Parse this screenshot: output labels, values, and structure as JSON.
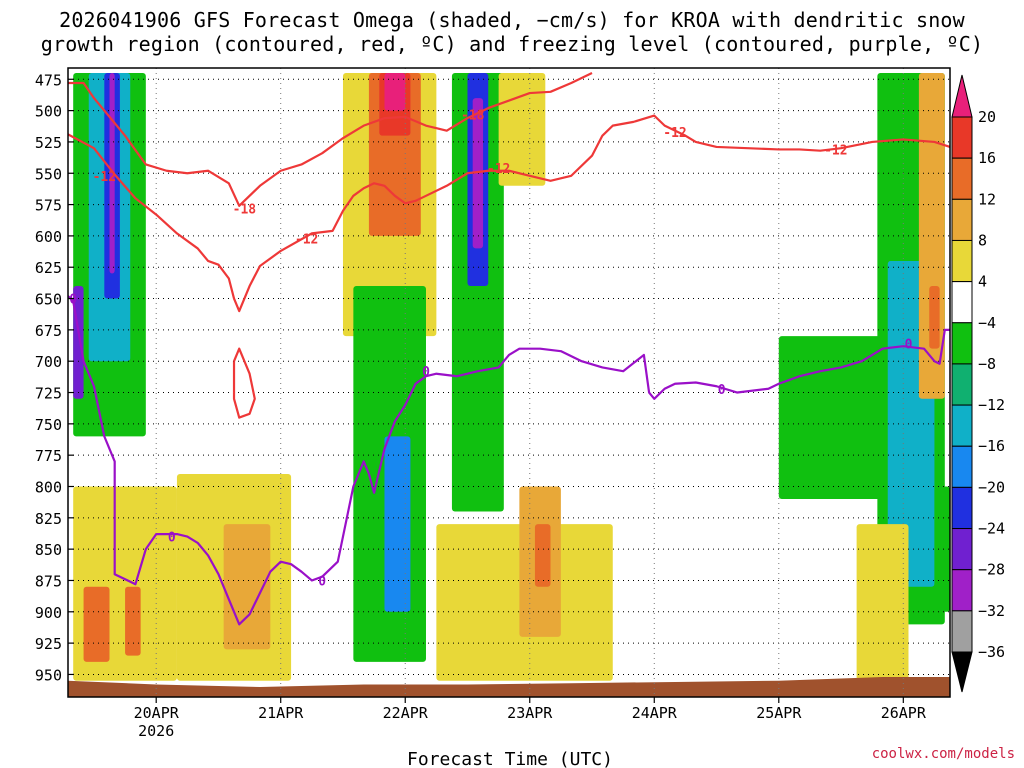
{
  "chart_data": {
    "type": "heatmap",
    "title_line1": "2026041906 GFS Forecast Omega (shaded, −cm/s) for KROA with dendritic snow",
    "title_line2": "growth region (contoured, red, ºC) and freezing level (contoured, purple, ºC)",
    "xlabel": "Forecast Time (UTC)",
    "ylabel": "",
    "credit": "coolwx.com/models",
    "x_range_hours": [
      -17,
      153
    ],
    "x_ticks": [
      {
        "hour": 0,
        "label": "20APR",
        "sublabel": "2026"
      },
      {
        "hour": 24,
        "label": "21APR"
      },
      {
        "hour": 48,
        "label": "22APR"
      },
      {
        "hour": 72,
        "label": "23APR"
      },
      {
        "hour": 96,
        "label": "24APR"
      },
      {
        "hour": 120,
        "label": "25APR"
      },
      {
        "hour": 144,
        "label": "26APR"
      }
    ],
    "y_ticks": [
      {
        "value": 475,
        "label": "475"
      },
      {
        "value": 500,
        "label": "500"
      },
      {
        "value": 525,
        "label": "525"
      },
      {
        "value": 550,
        "label": "550"
      },
      {
        "value": 575,
        "label": "575"
      },
      {
        "value": 600,
        "label": "600"
      },
      {
        "value": 625,
        "label": "625"
      },
      {
        "value": 650,
        "label": "650"
      },
      {
        "value": 675,
        "label": "675"
      },
      {
        "value": 700,
        "label": "700"
      },
      {
        "value": 725,
        "label": "725"
      },
      {
        "value": 750,
        "label": "750"
      },
      {
        "value": 775,
        "label": "775"
      },
      {
        "value": 800,
        "label": "800"
      },
      {
        "value": 825,
        "label": "825"
      },
      {
        "value": 850,
        "label": "850"
      },
      {
        "value": 875,
        "label": "875"
      },
      {
        "value": 900,
        "label": "900"
      },
      {
        "value": 925,
        "label": "925"
      },
      {
        "value": 950,
        "label": "950"
      }
    ],
    "y_range_hpa": [
      466,
      968
    ],
    "colorbar": {
      "levels": [
        {
          "label": "20",
          "color": "#e8207a"
        },
        {
          "label": "16",
          "color": "#e83828"
        },
        {
          "label": "12",
          "color": "#e86c28"
        },
        {
          "label": "8",
          "color": "#e8a838"
        },
        {
          "label": "4",
          "color": "#e8d838"
        },
        {
          "label": "−4",
          "color": "#ffffff"
        },
        {
          "label": "−8",
          "color": "#10c010"
        },
        {
          "label": "−12",
          "color": "#10b070"
        },
        {
          "label": "−16",
          "color": "#10b0c8"
        },
        {
          "label": "−20",
          "color": "#1888f0"
        },
        {
          "label": "−24",
          "color": "#2030e0"
        },
        {
          "label": "−28",
          "color": "#7020d0"
        },
        {
          "label": "−32",
          "color": "#a020c8"
        },
        {
          "label": "−36",
          "color": "#a0a0a0"
        }
      ],
      "top_arrow_color": "#e8207a",
      "bottom_arrow_color": "#000000"
    },
    "shaded_regions": [
      {
        "h0": -16,
        "h1": -2,
        "p0": 470,
        "p1": 760,
        "color": "#10c010"
      },
      {
        "h0": -13,
        "h1": -5,
        "p0": 470,
        "p1": 700,
        "color": "#10b0c8"
      },
      {
        "h0": -10,
        "h1": -7,
        "p0": 470,
        "p1": 650,
        "color": "#2030e0"
      },
      {
        "h0": -9,
        "h1": -8,
        "p0": 470,
        "p1": 630,
        "color": "#a020c8"
      },
      {
        "h0": -16,
        "h1": -14,
        "p0": 640,
        "p1": 730,
        "color": "#7020d0"
      },
      {
        "h0": -16,
        "h1": 4,
        "p0": 800,
        "p1": 955,
        "color": "#e8d838"
      },
      {
        "h0": -14,
        "h1": -9,
        "p0": 880,
        "p1": 940,
        "color": "#e86c28"
      },
      {
        "h0": -6,
        "h1": -3,
        "p0": 880,
        "p1": 935,
        "color": "#e86c28"
      },
      {
        "h0": 4,
        "h1": 26,
        "p0": 790,
        "p1": 955,
        "color": "#e8d838"
      },
      {
        "h0": 13,
        "h1": 22,
        "p0": 830,
        "p1": 930,
        "color": "#e8a838"
      },
      {
        "h0": 36,
        "h1": 54,
        "p0": 470,
        "p1": 680,
        "color": "#e8d838"
      },
      {
        "h0": 41,
        "h1": 51,
        "p0": 470,
        "p1": 600,
        "color": "#e86c28"
      },
      {
        "h0": 43,
        "h1": 49,
        "p0": 470,
        "p1": 520,
        "color": "#e83828"
      },
      {
        "h0": 44,
        "h1": 48,
        "p0": 470,
        "p1": 500,
        "color": "#e8207a"
      },
      {
        "h0": 38,
        "h1": 52,
        "p0": 640,
        "p1": 940,
        "color": "#10c010"
      },
      {
        "h0": 44,
        "h1": 49,
        "p0": 760,
        "p1": 900,
        "color": "#1888f0"
      },
      {
        "h0": 57,
        "h1": 67,
        "p0": 470,
        "p1": 820,
        "color": "#10c010"
      },
      {
        "h0": 60,
        "h1": 64,
        "p0": 470,
        "p1": 640,
        "color": "#2030e0"
      },
      {
        "h0": 61,
        "h1": 63,
        "p0": 490,
        "p1": 610,
        "color": "#a020c8"
      },
      {
        "h0": 66,
        "h1": 75,
        "p0": 470,
        "p1": 560,
        "color": "#e8d838"
      },
      {
        "h0": 54,
        "h1": 88,
        "p0": 830,
        "p1": 955,
        "color": "#e8d838"
      },
      {
        "h0": 70,
        "h1": 78,
        "p0": 800,
        "p1": 920,
        "color": "#e8a838"
      },
      {
        "h0": 73,
        "h1": 76,
        "p0": 830,
        "p1": 880,
        "color": "#e86c28"
      },
      {
        "h0": 120,
        "h1": 142,
        "p0": 680,
        "p1": 810,
        "color": "#10c010"
      },
      {
        "h0": 139,
        "h1": 152,
        "p0": 470,
        "p1": 910,
        "color": "#10c010"
      },
      {
        "h0": 141,
        "h1": 150,
        "p0": 620,
        "p1": 880,
        "color": "#10b0c8"
      },
      {
        "h0": 147,
        "h1": 152,
        "p0": 470,
        "p1": 730,
        "color": "#e8a838"
      },
      {
        "h0": 149,
        "h1": 151,
        "p0": 640,
        "p1": 690,
        "color": "#e86c28"
      },
      {
        "h0": 135,
        "h1": 145,
        "p0": 830,
        "p1": 955,
        "color": "#e8d838"
      },
      {
        "h0": 150,
        "h1": 153,
        "p0": 800,
        "p1": 900,
        "color": "#10c010"
      }
    ],
    "series": [
      {
        "name": "-12 C isotherm (red, upper)",
        "color": "#ee3838",
        "points": [
          [
            -17,
            519
          ],
          [
            -12,
            530
          ],
          [
            -8,
            551
          ],
          [
            -4,
            570
          ],
          [
            0,
            583
          ],
          [
            4,
            598
          ],
          [
            8,
            610
          ],
          [
            10,
            620
          ],
          [
            12,
            623
          ],
          [
            14,
            634
          ],
          [
            15,
            650
          ],
          [
            16,
            660
          ],
          [
            18,
            640
          ],
          [
            20,
            624
          ],
          [
            24,
            612
          ],
          [
            30,
            598
          ],
          [
            34,
            596
          ],
          [
            36,
            580
          ],
          [
            38,
            568
          ],
          [
            40,
            562
          ],
          [
            42,
            558
          ],
          [
            44,
            560
          ],
          [
            46,
            568
          ],
          [
            48,
            574
          ],
          [
            50,
            572
          ],
          [
            52,
            568
          ],
          [
            56,
            560
          ],
          [
            60,
            550
          ],
          [
            64,
            548
          ],
          [
            68,
            548
          ],
          [
            72,
            552
          ],
          [
            76,
            556
          ],
          [
            80,
            552
          ],
          [
            84,
            536
          ],
          [
            86,
            520
          ],
          [
            88,
            512
          ],
          [
            92,
            509
          ],
          [
            96,
            504
          ],
          [
            98,
            512
          ],
          [
            102,
            520
          ],
          [
            104,
            525
          ],
          [
            108,
            529
          ],
          [
            114,
            530
          ],
          [
            120,
            531
          ],
          [
            124,
            531
          ],
          [
            128,
            532
          ],
          [
            132,
            530
          ],
          [
            138,
            525
          ],
          [
            144,
            523
          ],
          [
            150,
            525
          ],
          [
            153,
            529
          ]
        ]
      },
      {
        "name": "-18 C isotherm (red, upper)",
        "color": "#ee3838",
        "points": [
          [
            -17,
            478
          ],
          [
            -14,
            478
          ],
          [
            -12,
            490
          ],
          [
            -10,
            500
          ],
          [
            -6,
            520
          ],
          [
            -2,
            543
          ],
          [
            2,
            548
          ],
          [
            6,
            550
          ],
          [
            10,
            548
          ],
          [
            14,
            558
          ],
          [
            16,
            576
          ],
          [
            20,
            560
          ],
          [
            24,
            548
          ],
          [
            28,
            543
          ],
          [
            32,
            534
          ],
          [
            36,
            522
          ],
          [
            40,
            512
          ],
          [
            44,
            506
          ],
          [
            48,
            505
          ],
          [
            52,
            512
          ],
          [
            56,
            516
          ],
          [
            60,
            506
          ],
          [
            64,
            498
          ],
          [
            68,
            492
          ],
          [
            72,
            486
          ],
          [
            76,
            485
          ],
          [
            80,
            478
          ],
          [
            84,
            470
          ]
        ]
      },
      {
        "name": "-12 C isotherm (red, lower pocket)",
        "color": "#ee3838",
        "points": [
          [
            15,
            700
          ],
          [
            16,
            690
          ],
          [
            18,
            710
          ],
          [
            19,
            730
          ],
          [
            18,
            742
          ],
          [
            16,
            745
          ],
          [
            15,
            730
          ],
          [
            15,
            700
          ]
        ]
      },
      {
        "name": "0 C freezing level (purple)",
        "color": "#9a10c8",
        "points": [
          [
            -17,
            648
          ],
          [
            -16,
            652
          ],
          [
            -14,
            700
          ],
          [
            -12,
            720
          ],
          [
            -10,
            760
          ],
          [
            -8,
            780
          ],
          [
            -8,
            870
          ],
          [
            -4,
            878
          ],
          [
            -2,
            850
          ],
          [
            0,
            838
          ],
          [
            4,
            838
          ],
          [
            6,
            840
          ],
          [
            8,
            845
          ],
          [
            10,
            855
          ],
          [
            12,
            870
          ],
          [
            14,
            890
          ],
          [
            16,
            910
          ],
          [
            18,
            902
          ],
          [
            20,
            885
          ],
          [
            22,
            868
          ],
          [
            24,
            860
          ],
          [
            26,
            862
          ],
          [
            28,
            868
          ],
          [
            30,
            875
          ],
          [
            32,
            872
          ],
          [
            35,
            860
          ],
          [
            38,
            800
          ],
          [
            40,
            780
          ],
          [
            41,
            790
          ],
          [
            42,
            805
          ],
          [
            44,
            770
          ],
          [
            46,
            748
          ],
          [
            48,
            735
          ],
          [
            50,
            718
          ],
          [
            52,
            712
          ],
          [
            54,
            710
          ],
          [
            58,
            712
          ],
          [
            62,
            708
          ],
          [
            66,
            705
          ],
          [
            68,
            695
          ],
          [
            70,
            690
          ],
          [
            74,
            690
          ],
          [
            78,
            692
          ],
          [
            82,
            700
          ],
          [
            86,
            705
          ],
          [
            90,
            708
          ],
          [
            94,
            695
          ],
          [
            95,
            725
          ],
          [
            96,
            730
          ],
          [
            98,
            722
          ],
          [
            100,
            718
          ],
          [
            104,
            717
          ],
          [
            108,
            720
          ],
          [
            112,
            725
          ],
          [
            118,
            722
          ],
          [
            120,
            718
          ],
          [
            124,
            712
          ],
          [
            128,
            708
          ],
          [
            132,
            705
          ],
          [
            136,
            700
          ],
          [
            140,
            690
          ],
          [
            144,
            688
          ],
          [
            148,
            690
          ],
          [
            150,
            700
          ],
          [
            151,
            702
          ],
          [
            152,
            675
          ],
          [
            153,
            675
          ]
        ]
      }
    ],
    "contour_labels": [
      {
        "text": "-12",
        "hour": -10,
        "hpa": 552,
        "color": "#ee3838"
      },
      {
        "text": "-18",
        "hour": 17,
        "hpa": 578,
        "color": "#ee3838"
      },
      {
        "text": "-18",
        "hour": 61,
        "hpa": 503,
        "color": "#ee3838"
      },
      {
        "text": "-12",
        "hour": 29,
        "hpa": 602,
        "color": "#ee3838"
      },
      {
        "text": "-12",
        "hour": 66,
        "hpa": 546,
        "color": "#ee3838"
      },
      {
        "text": "-12",
        "hour": 100,
        "hpa": 517,
        "color": "#ee3838"
      },
      {
        "text": "-12",
        "hour": 131,
        "hpa": 531,
        "color": "#ee3838"
      },
      {
        "text": "0",
        "hour": 3,
        "hpa": 840,
        "color": "#9a10c8"
      },
      {
        "text": "0",
        "hour": 32,
        "hpa": 875,
        "color": "#9a10c8"
      },
      {
        "text": "0",
        "hour": 52,
        "hpa": 708,
        "color": "#9a10c8"
      },
      {
        "text": "0",
        "hour": 109,
        "hpa": 722,
        "color": "#9a10c8"
      },
      {
        "text": "0",
        "hour": 145,
        "hpa": 686,
        "color": "#9a10c8"
      },
      {
        "text": "0",
        "hour": -16,
        "hpa": 650,
        "color": "#9a10c8"
      }
    ],
    "terrain": {
      "color": "#a0522d",
      "points": [
        [
          -17,
          955
        ],
        [
          0,
          958
        ],
        [
          20,
          960
        ],
        [
          40,
          958
        ],
        [
          60,
          958
        ],
        [
          80,
          957
        ],
        [
          100,
          956
        ],
        [
          120,
          955
        ],
        [
          140,
          952
        ],
        [
          153,
          952
        ]
      ]
    }
  }
}
